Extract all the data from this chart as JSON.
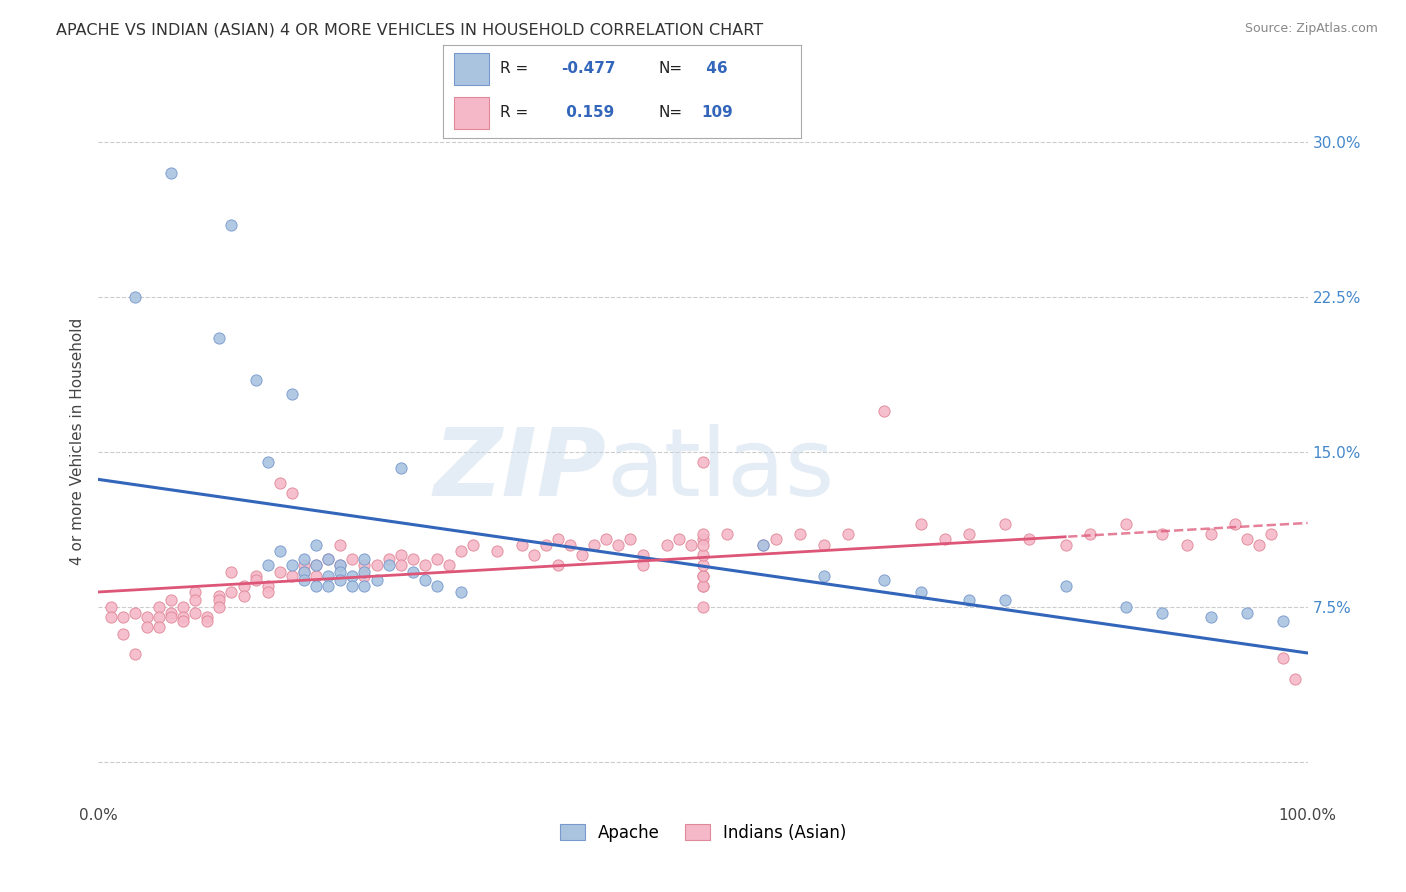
{
  "title": "APACHE VS INDIAN (ASIAN) 4 OR MORE VEHICLES IN HOUSEHOLD CORRELATION CHART",
  "source": "Source: ZipAtlas.com",
  "ylabel": "4 or more Vehicles in Household",
  "xlim": [
    0,
    100
  ],
  "ylim": [
    -2,
    33
  ],
  "apache_color": "#aac4e0",
  "apache_edge_color": "#7799cc",
  "indian_color": "#f5b8c8",
  "indian_edge_color": "#e08898",
  "apache_line_color": "#3366bb",
  "indian_line_color": "#dd5577",
  "apache_R": -0.477,
  "apache_N": 46,
  "indian_R": 0.159,
  "indian_N": 109,
  "legend_label_apache": "Apache",
  "legend_label_indian": "Indians (Asian)",
  "watermark_zip": "ZIP",
  "watermark_atlas": "atlas",
  "background_color": "#ffffff",
  "grid_color": "#cccccc",
  "ytick_vals": [
    0,
    7.5,
    15.0,
    22.5,
    30.0
  ],
  "ytick_labels": [
    "",
    "7.5%",
    "15.0%",
    "22.5%",
    "30.0%"
  ],
  "apache_x": [
    3,
    6,
    10,
    11,
    13,
    14,
    14,
    15,
    16,
    16,
    17,
    17,
    17,
    18,
    18,
    18,
    19,
    19,
    19,
    20,
    20,
    20,
    21,
    21,
    22,
    22,
    22,
    23,
    24,
    25,
    26,
    27,
    28,
    30,
    55,
    60,
    65,
    68,
    72,
    75,
    80,
    85,
    88,
    92,
    95,
    98
  ],
  "apache_y": [
    22.5,
    28.5,
    20.5,
    26.0,
    18.5,
    14.5,
    9.5,
    10.2,
    17.8,
    9.5,
    9.2,
    9.8,
    8.8,
    10.5,
    9.5,
    8.5,
    9.8,
    9.0,
    8.5,
    9.5,
    9.2,
    8.8,
    9.0,
    8.5,
    9.8,
    9.2,
    8.5,
    8.8,
    9.5,
    14.2,
    9.2,
    8.8,
    8.5,
    8.2,
    10.5,
    9.0,
    8.8,
    8.2,
    7.8,
    7.8,
    8.5,
    7.5,
    7.2,
    7.0,
    7.2,
    6.8
  ],
  "indian_x": [
    1,
    1,
    2,
    2,
    3,
    3,
    4,
    4,
    5,
    5,
    5,
    6,
    6,
    6,
    7,
    7,
    7,
    8,
    8,
    8,
    9,
    9,
    10,
    10,
    10,
    11,
    11,
    12,
    12,
    13,
    13,
    14,
    14,
    15,
    15,
    16,
    16,
    17,
    17,
    18,
    18,
    19,
    20,
    20,
    21,
    22,
    22,
    23,
    24,
    25,
    25,
    26,
    27,
    28,
    29,
    30,
    31,
    33,
    35,
    36,
    37,
    38,
    38,
    39,
    40,
    41,
    42,
    43,
    44,
    45,
    45,
    47,
    48,
    49,
    50,
    50,
    52,
    55,
    56,
    58,
    60,
    62,
    65,
    68,
    70,
    72,
    75,
    77,
    80,
    82,
    85,
    88,
    90,
    92,
    94,
    95,
    96,
    97,
    98,
    99,
    50,
    50,
    50,
    50,
    50,
    50,
    50,
    50,
    50
  ],
  "indian_y": [
    7.5,
    7.0,
    7.0,
    6.2,
    7.2,
    5.2,
    7.0,
    6.5,
    7.5,
    7.0,
    6.5,
    7.8,
    7.2,
    7.0,
    7.5,
    7.0,
    6.8,
    8.2,
    7.8,
    7.2,
    7.0,
    6.8,
    8.0,
    7.8,
    7.5,
    9.2,
    8.2,
    8.5,
    8.0,
    9.0,
    8.8,
    8.5,
    8.2,
    13.5,
    9.2,
    9.0,
    13.0,
    9.5,
    9.2,
    9.5,
    9.0,
    9.8,
    10.5,
    9.5,
    9.8,
    9.5,
    9.0,
    9.5,
    9.8,
    10.0,
    9.5,
    9.8,
    9.5,
    9.8,
    9.5,
    10.2,
    10.5,
    10.2,
    10.5,
    10.0,
    10.5,
    10.8,
    9.5,
    10.5,
    10.0,
    10.5,
    10.8,
    10.5,
    10.8,
    10.0,
    9.5,
    10.5,
    10.8,
    10.5,
    10.8,
    14.5,
    11.0,
    10.5,
    10.8,
    11.0,
    10.5,
    11.0,
    17.0,
    11.5,
    10.8,
    11.0,
    11.5,
    10.8,
    10.5,
    11.0,
    11.5,
    11.0,
    10.5,
    11.0,
    11.5,
    10.8,
    10.5,
    11.0,
    5.0,
    4.0,
    7.5,
    8.5,
    9.0,
    8.5,
    9.0,
    9.5,
    10.0,
    10.5,
    11.0
  ]
}
